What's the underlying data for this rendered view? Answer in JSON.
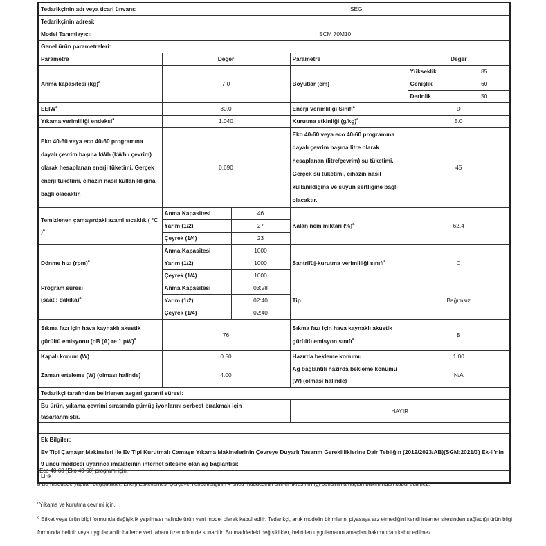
{
  "marker": "a",
  "supplier": {
    "name_label": "Tedarikçinin adı veya ticari ünvanı:",
    "name_value": "SEG",
    "address_label": "Tedarikçinin adresi:",
    "model_label": "Model Tanımlayıcı:",
    "model_value": "SCM 70M10",
    "general_label": "Genel ürün parametreleri:"
  },
  "header": {
    "param": "Parametre",
    "value": "Değer"
  },
  "rows": {
    "capacity": {
      "label": "Anma kapasitesi (kg)",
      "value": "7.0"
    },
    "dimensions": {
      "label": "Boyutlar (cm)",
      "height_label": "Yükseklik",
      "height": "85",
      "width_label": "Genişlik",
      "width": "60",
      "depth_label": "Derinlik",
      "depth": "50"
    },
    "eeiw": {
      "label": "EEIW",
      "value": "80.0"
    },
    "energy_class": {
      "label": "Enerji Verimliliği Sınıfı",
      "value": "D"
    },
    "wash_index": {
      "label": "Yıkama verimliliği endeksi",
      "value": "1.040"
    },
    "drying": {
      "label": "Kurutma etkinliği (g/kg)",
      "value": "5.0"
    },
    "energy": {
      "label": "Eko 40-60 veya eco 40-60 programına dayalı çevrim başına kWh (kWh / çevrim) olarak hesaplanan enerji tüketimi. Gerçek enerji tüketimi, cihazın nasıl kullanıldığına bağlı olacaktır.",
      "value": "0.690"
    },
    "water": {
      "label": "Eko 40-60 veya eco 40-60 programına dayalı çevrim başına litre olarak hesaplanan (litre/çevrim) su tüketimi. Gerçek su tüketimi, cihazın nasıl kullanıldığına ve suyun sertliğine bağlı olacaktır.",
      "value": "45"
    },
    "temperature": {
      "label": "Temizlenen çamaşırdaki azami sıcaklık ( °C )",
      "sub": [
        {
          "label": "Anma Kapasitesi",
          "value": "46"
        },
        {
          "label": "Yarım (1/2)",
          "value": "27"
        },
        {
          "label": "Çeyrek (1/4)",
          "value": "23"
        }
      ]
    },
    "moisture": {
      "label": "Kalan nem miktarı (%)",
      "value": "62.4"
    },
    "spin": {
      "label": "Dönme hızı (rpm)",
      "sub": [
        {
          "label": "Anma Kapasitesi",
          "value": "1000"
        },
        {
          "label": "Yarım (1/2)",
          "value": "1000"
        },
        {
          "label": "Çeyrek (1/4)",
          "value": "1000"
        }
      ]
    },
    "spin_class": {
      "label": "Santrifüj-kurutma verimliliği sınıfı",
      "value": "C"
    },
    "duration": {
      "label1": "Program süresi",
      "label2": "(saat : dakika)",
      "sub": [
        {
          "label": "Anma Kapasitesi",
          "value": "03:28"
        },
        {
          "label": "Yarım (1/2)",
          "value": "02:40"
        },
        {
          "label": "Çeyrek (1/4)",
          "value": "02:40"
        }
      ]
    },
    "type": {
      "label": "Tip",
      "value": "Bağımsız"
    },
    "noise": {
      "label": "Sıkma fazı için hava kaynaklı akustik gürültü emisyonu (dB (A) re 1 pW)",
      "value": "76"
    },
    "noise_class": {
      "label": "Sıkma fazı için hava kaynaklı akustik gürültü emisyon sınıfı",
      "value": "B"
    },
    "off_mode": {
      "label": "Kapalı konum (W)",
      "value": "0.50"
    },
    "standby": {
      "label": "Hazırda bekleme konumu",
      "value": "1.00"
    },
    "delay": {
      "label": "Zaman erteleme (W) (olması halinde)",
      "value": "4.00"
    },
    "network_standby": {
      "label": "Ağ bağlantılı hazırda bekleme konumu (W) (olması halinde)",
      "value": "N/A"
    },
    "warranty": {
      "label": "Tedarikçi tarafından belirlenen asgari garanti süresi:"
    },
    "silver": {
      "label": "Bu ürün, yıkama çevrimi sırasında gümüş iyonlarını serbest bırakmak için tasarlanmıştır.",
      "value": "HAYIR"
    },
    "extra": {
      "label": "Ek Bilgiler:"
    },
    "regulation": {
      "label": "Ev Tipi Çamaşır Makineleri İle Ev Tipi Kurutmalı Çamaşır Yıkama Makinelerinin Çevreye Duyarlı Tasarım Gerekliliklerine Dair Tebliğin (2019/2023/AB)(SGM:2021/3) Ek-II'nin 9 uncu maddesi uyarınca imalatçının internet sitesine olan ağ bağlantısı:"
    },
    "link": {
      "label": "Link"
    }
  },
  "footnotes": {
    "a_mark": "a",
    "a": "Eco 40-60 (Eko 40-60) programı için.",
    "b": "b Bu maddede yapılan değişiklikler, Enerji Etiketlemesi Çerçeve Yönetmeliğinin 4 üncü maddesinin birinci fıkrasının (ç) bendinin amaçları bakımından kabul edilmez.",
    "c_mark": "c",
    "c": "Yıkama ve kurutma çevrimi için.",
    "d_mark": "d",
    "d": "Etiket veya ürün bilgi formunda değişiklik yapılması halinde ürün yeni model olarak kabul edilir. Tedarikçi, artık modelin birimlerini piyasaya arz etmediğini kendi internet sitesinden sağladığı ürün bilgi formunda belirtir veya uygulanabilir hallerde veri tabanı üzerinden de sunabilir. Bu maddedeki değişiklikler, belirtilen uygulamanın amaçları bakımından kabul edilmez."
  }
}
